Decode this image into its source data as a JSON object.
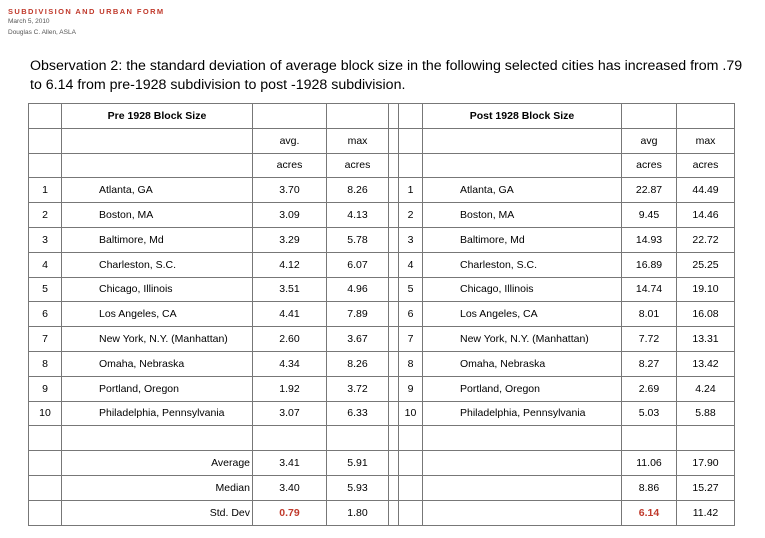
{
  "header": {
    "title": "SUBDIVISION AND URBAN FORM",
    "date": "March 5, 2010",
    "author": "Douglas C. Allen, ASLA"
  },
  "observation": "Observation 2: the standard deviation of average block size in the following selected cities has increased from .79 to 6.14 from pre-1928 subdivision to post -1928 subdivision.",
  "colors": {
    "header_red": "#c0392b",
    "highlight_red": "#c0392b",
    "border": "#777777"
  },
  "pre": {
    "title": "Pre 1928 Block Size",
    "avg_label": "avg.",
    "max_label": "max",
    "unit_avg": "acres",
    "unit_max": "acres",
    "rows": [
      {
        "n": "1",
        "city": "Atlanta, GA",
        "avg": "3.70",
        "max": "8.26"
      },
      {
        "n": "2",
        "city": "Boston, MA",
        "avg": "3.09",
        "max": "4.13"
      },
      {
        "n": "3",
        "city": "Baltimore, Md",
        "avg": "3.29",
        "max": "5.78"
      },
      {
        "n": "4",
        "city": "Charleston, S.C.",
        "avg": "4.12",
        "max": "6.07"
      },
      {
        "n": "5",
        "city": "Chicago, Illinois",
        "avg": "3.51",
        "max": "4.96"
      },
      {
        "n": "6",
        "city": "Los Angeles, CA",
        "avg": "4.41",
        "max": "7.89"
      },
      {
        "n": "7",
        "city": "New York, N.Y. (Manhattan)",
        "avg": "2.60",
        "max": "3.67"
      },
      {
        "n": "8",
        "city": "Omaha, Nebraska",
        "avg": "4.34",
        "max": "8.26"
      },
      {
        "n": "9",
        "city": "Portland, Oregon",
        "avg": "1.92",
        "max": "3.72"
      },
      {
        "n": "10",
        "city": "Philadelphia, Pennsylvania",
        "avg": "3.07",
        "max": "6.33"
      }
    ],
    "stats": [
      {
        "label": "Average",
        "avg": "3.41",
        "max": "5.91",
        "highlight": false
      },
      {
        "label": "Median",
        "avg": "3.40",
        "max": "5.93",
        "highlight": false
      },
      {
        "label": "Std. Dev",
        "avg": "0.79",
        "max": "1.80",
        "highlight": true
      }
    ]
  },
  "post": {
    "title": "Post 1928 Block Size",
    "avg_label": "avg",
    "max_label": "max",
    "unit_avg": "acres",
    "unit_max": "acres",
    "rows": [
      {
        "n": "1",
        "city": "Atlanta, GA",
        "avg": "22.87",
        "max": "44.49"
      },
      {
        "n": "2",
        "city": "Boston, MA",
        "avg": "9.45",
        "max": "14.46"
      },
      {
        "n": "3",
        "city": "Baltimore, Md",
        "avg": "14.93",
        "max": "22.72"
      },
      {
        "n": "4",
        "city": "Charleston, S.C.",
        "avg": "16.89",
        "max": "25.25"
      },
      {
        "n": "5",
        "city": "Chicago, Illinois",
        "avg": "14.74",
        "max": "19.10"
      },
      {
        "n": "6",
        "city": "Los Angeles, CA",
        "avg": "8.01",
        "max": "16.08"
      },
      {
        "n": "7",
        "city": "New York, N.Y. (Manhattan)",
        "avg": "7.72",
        "max": "13.31"
      },
      {
        "n": "8",
        "city": "Omaha, Nebraska",
        "avg": "8.27",
        "max": "13.42"
      },
      {
        "n": "9",
        "city": "Portland, Oregon",
        "avg": "2.69",
        "max": "4.24"
      },
      {
        "n": "10",
        "city": "Philadelphia, Pennsylvania",
        "avg": "5.03",
        "max": "5.88"
      }
    ],
    "stats": [
      {
        "avg": "11.06",
        "max": "17.90",
        "highlight": false
      },
      {
        "avg": "8.86",
        "max": "15.27",
        "highlight": false
      },
      {
        "avg": "6.14",
        "max": "11.42",
        "highlight": true
      }
    ]
  }
}
